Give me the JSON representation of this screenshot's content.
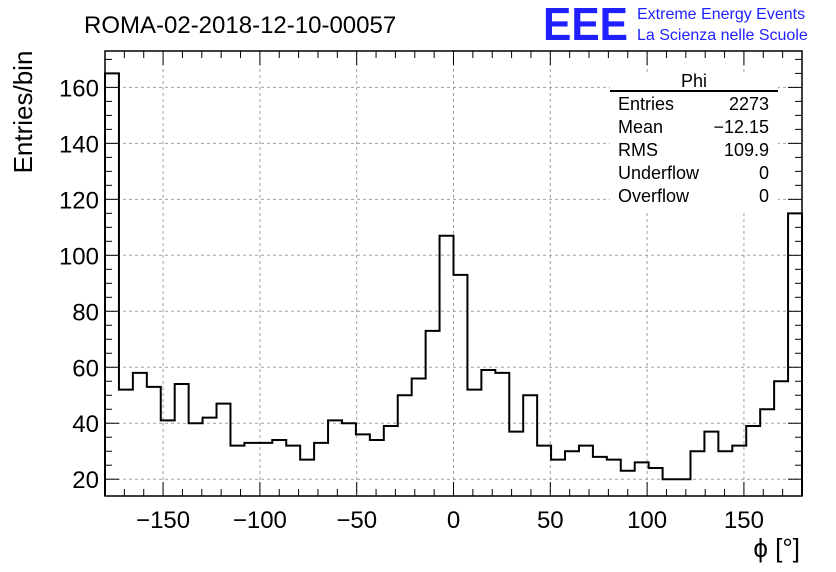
{
  "header": {
    "title": "ROMA-02-2018-12-10-00057",
    "logo_letters": "EEE",
    "logo_line1": "Extreme Energy Events",
    "logo_line2": "La Scienza nelle Scuole"
  },
  "stats": {
    "name": "Phi",
    "rows": [
      {
        "label": "Entries",
        "value": "2273"
      },
      {
        "label": "Mean",
        "value": "−12.15"
      },
      {
        "label": "RMS",
        "value": "109.9"
      },
      {
        "label": "Underflow",
        "value": "0"
      },
      {
        "label": "Overflow",
        "value": "0"
      }
    ]
  },
  "colors": {
    "line": "#000000",
    "grid": "#a0a0a0",
    "logo": "#1f1fff"
  },
  "chart_data": {
    "type": "histogram",
    "title": "ROMA-02-2018-12-10-00057",
    "xlabel": "ϕ [°]",
    "ylabel": "Entries/bin",
    "xlim": [
      -180,
      180
    ],
    "ylim": [
      14,
      173
    ],
    "bin_width": 7.2,
    "grid": true,
    "xticks": [
      -150,
      -100,
      -50,
      0,
      50,
      100,
      150
    ],
    "xtick_labels": [
      "−150",
      "−100",
      "−50",
      "0",
      "50",
      "100",
      "150"
    ],
    "yticks": [
      20,
      40,
      60,
      80,
      100,
      120,
      140,
      160
    ],
    "ytick_labels": [
      "20",
      "40",
      "60",
      "80",
      "100",
      "120",
      "140",
      "160"
    ],
    "values": [
      165,
      52,
      58,
      53,
      41,
      54,
      40,
      42,
      47,
      32,
      33,
      33,
      34,
      32,
      27,
      33,
      41,
      40,
      36,
      34,
      39,
      50,
      56,
      73,
      107,
      93,
      52,
      59,
      58,
      37,
      50,
      32,
      27,
      30,
      32,
      28,
      27,
      23,
      26,
      24,
      20,
      20,
      30,
      37,
      30,
      32,
      39,
      45,
      55,
      115
    ]
  }
}
